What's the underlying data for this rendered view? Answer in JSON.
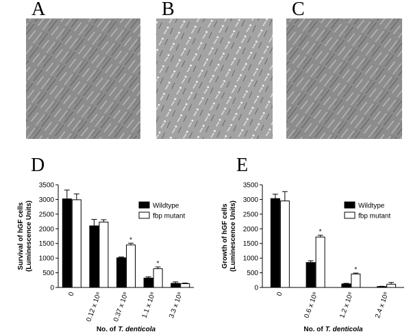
{
  "panels": [
    "A",
    "B",
    "C"
  ],
  "chart_data": [
    {
      "type": "bar",
      "label": "D",
      "ylabel": [
        "Survival of hGF cells",
        "(Luminescence Units)"
      ],
      "xlabel": [
        "No. of",
        "T. denticola"
      ],
      "categories": [
        "0",
        "0.12 x 10⁸",
        "0.37 x 10⁸",
        "1.1 x 10⁸",
        "3.3 x 10⁸"
      ],
      "series": [
        {
          "name": "Wildtype",
          "color": "#000000",
          "values": [
            3020,
            2100,
            1010,
            320,
            140
          ],
          "errors": [
            300,
            220,
            30,
            40,
            50
          ],
          "markers": [
            null,
            null,
            null,
            null,
            null
          ]
        },
        {
          "name": "fbp mutant",
          "color": "#ffffff",
          "values": [
            2990,
            2230,
            1450,
            640,
            130
          ],
          "errors": [
            200,
            80,
            60,
            60,
            20
          ],
          "markers": [
            null,
            null,
            "*",
            "*",
            null
          ]
        }
      ],
      "ylim": [
        0,
        3500
      ],
      "yticks": [
        0,
        500,
        1000,
        1500,
        2000,
        2500,
        3000,
        3500
      ],
      "legend": "upper right"
    },
    {
      "type": "bar",
      "label": "E",
      "ylabel": [
        "Growth of hGF cells",
        "(Luminescence Units)"
      ],
      "xlabel": [
        "No. of",
        "T. denticola"
      ],
      "categories": [
        "0",
        "0.6 x 10⁸",
        "1.2 x 10⁸",
        "2.4 x 10⁸"
      ],
      "series": [
        {
          "name": "Wildtype",
          "color": "#000000",
          "values": [
            3030,
            850,
            120,
            30
          ],
          "errors": [
            150,
            60,
            20,
            10
          ],
          "markers": [
            null,
            null,
            null,
            null
          ]
        },
        {
          "name": "fbp mutant",
          "color": "#ffffff",
          "values": [
            2950,
            1720,
            460,
            110
          ],
          "errors": [
            320,
            60,
            30,
            60
          ],
          "markers": [
            null,
            "*",
            "*",
            null
          ]
        }
      ],
      "ylim": [
        0,
        3500
      ],
      "yticks": [
        0,
        500,
        1000,
        1500,
        2000,
        2500,
        3000,
        3500
      ],
      "legend": "upper right"
    }
  ]
}
